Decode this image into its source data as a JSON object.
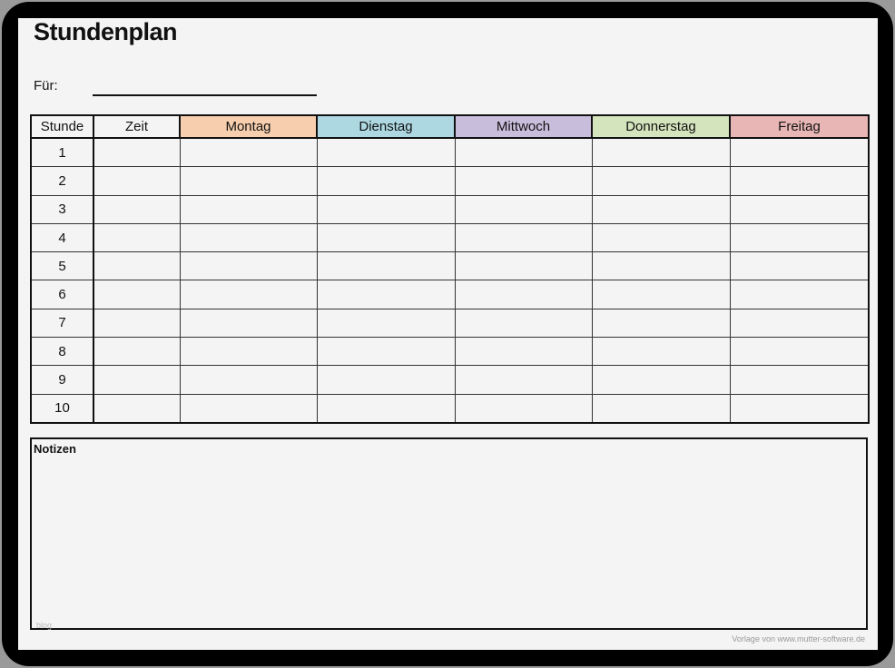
{
  "title": "Stundenplan",
  "for_label": "Für:",
  "table": {
    "headers": [
      {
        "label": "Stunde",
        "color": "#f4f4f4"
      },
      {
        "label": "Zeit",
        "color": "#f4f4f4"
      },
      {
        "label": "Montag",
        "color": "#f7cfae"
      },
      {
        "label": "Dienstag",
        "color": "#add8e2"
      },
      {
        "label": "Mittwoch",
        "color": "#c9bddc"
      },
      {
        "label": "Donnerstag",
        "color": "#d4e4bc"
      },
      {
        "label": "Freitag",
        "color": "#e8b6b5"
      }
    ],
    "rows": [
      "1",
      "2",
      "3",
      "4",
      "5",
      "6",
      "7",
      "8",
      "9",
      "10"
    ]
  },
  "notes_label": "Notizen",
  "watermark": "blog",
  "footer": "Vorlage von www.mutter-software.de"
}
